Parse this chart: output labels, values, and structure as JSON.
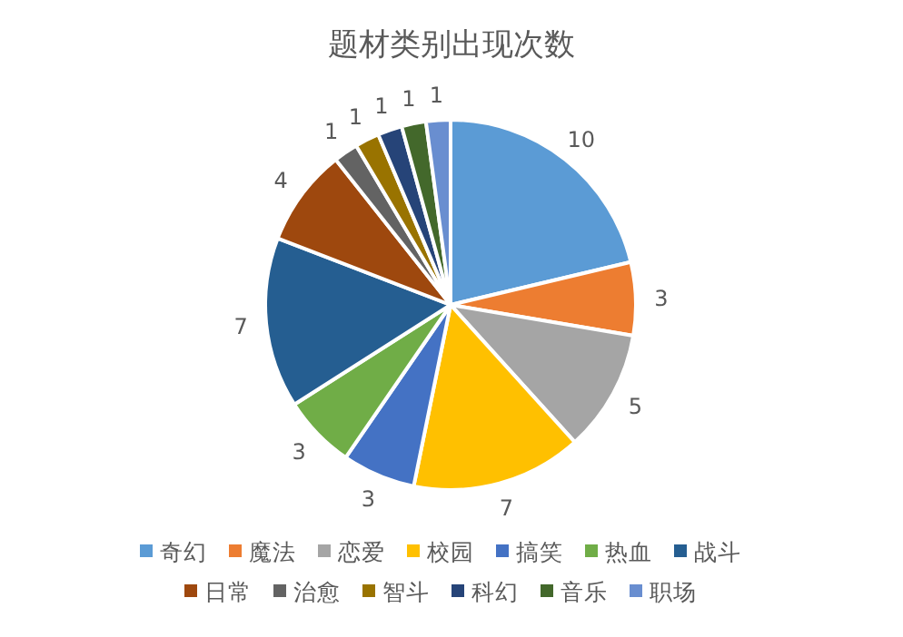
{
  "chart_data": {
    "type": "pie",
    "title": "题材类别出现次数",
    "categories": [
      "奇幻",
      "魔法",
      "恋爱",
      "校园",
      "搞笑",
      "热血",
      "战斗",
      "日常",
      "治愈",
      "智斗",
      "科幻",
      "音乐",
      "职场"
    ],
    "values": [
      10,
      3,
      5,
      7,
      3,
      3,
      7,
      4,
      1,
      1,
      1,
      1,
      1
    ],
    "colors": [
      "#5b9bd5",
      "#ed7d31",
      "#a5a5a5",
      "#ffc000",
      "#4472c4",
      "#70ad47",
      "#255e91",
      "#9e480e",
      "#636363",
      "#997300",
      "#264478",
      "#43682b",
      "#698ed0"
    ],
    "data_labels": true,
    "legend": "bottom"
  }
}
